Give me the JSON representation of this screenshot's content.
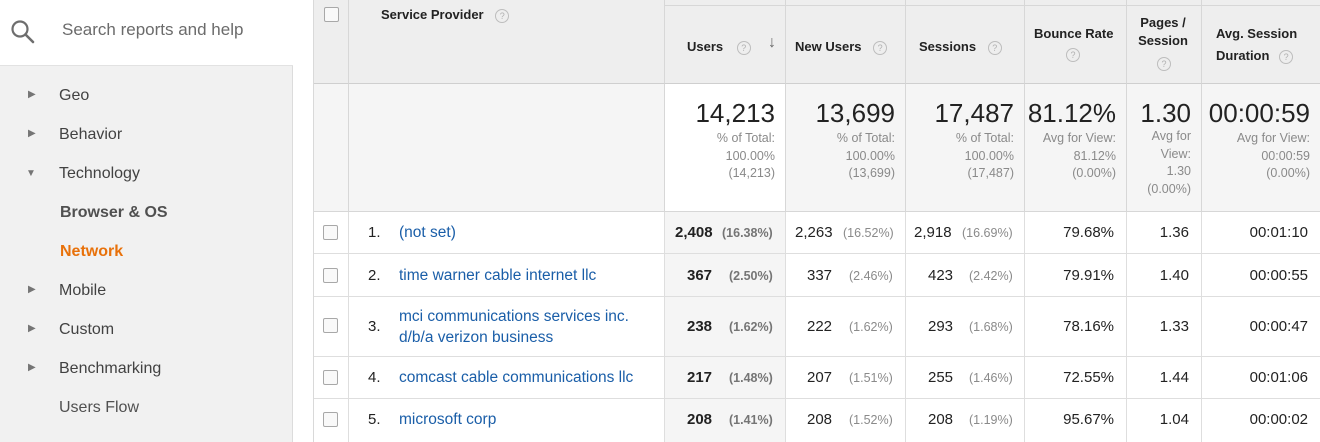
{
  "search": {
    "placeholder": "Search reports and help",
    "icon": "search-icon"
  },
  "sidebar": {
    "items": [
      {
        "label": "Geo",
        "type": "collapsed"
      },
      {
        "label": "Behavior",
        "type": "collapsed"
      },
      {
        "label": "Technology",
        "type": "expanded"
      },
      {
        "label": "Browser & OS",
        "type": "sub"
      },
      {
        "label": "Network",
        "type": "sub-active"
      },
      {
        "label": "Mobile",
        "type": "collapsed"
      },
      {
        "label": "Custom",
        "type": "collapsed"
      },
      {
        "label": "Benchmarking",
        "type": "collapsed"
      },
      {
        "label": "Users Flow",
        "type": "plain"
      }
    ],
    "active_color": "#e8710a"
  },
  "table": {
    "dimension_header": "Service Provider",
    "columns": {
      "users": "Users",
      "new_users": "New Users",
      "sessions": "Sessions",
      "bounce_rate": "Bounce Rate",
      "pages_session_1": "Pages /",
      "pages_session_2": "Session",
      "avg_duration_1": "Avg. Session",
      "avg_duration_2": "Duration"
    },
    "help_glyph": "?",
    "sort_glyph": "↓",
    "totals": {
      "users": {
        "value": "14,213",
        "l1": "% of Total:",
        "l2": "100.00%",
        "l3": "(14,213)"
      },
      "new_users": {
        "value": "13,699",
        "l1": "% of Total:",
        "l2": "100.00%",
        "l3": "(13,699)"
      },
      "sessions": {
        "value": "17,487",
        "l1": "% of Total:",
        "l2": "100.00%",
        "l3": "(17,487)"
      },
      "bounce_rate": {
        "value": "81.12%",
        "l1": "Avg for View:",
        "l2": "81.12%",
        "l3": "(0.00%)"
      },
      "pages_session": {
        "value": "1.30",
        "l1": "Avg for",
        "l2": "View:",
        "l3": "1.30",
        "l4": "(0.00%)"
      },
      "avg_duration": {
        "value": "00:00:59",
        "l1": "Avg for View:",
        "l2": "00:00:59",
        "l3": "(0.00%)"
      }
    },
    "rows": [
      {
        "num": "1.",
        "provider": "(not set)",
        "provider2": "",
        "users": "2,408",
        "users_pct": "(16.38%)",
        "new_users": "2,263",
        "new_users_pct": "(16.52%)",
        "sessions": "2,918",
        "sessions_pct": "(16.69%)",
        "bounce": "79.68%",
        "pages": "1.36",
        "duration": "00:01:10"
      },
      {
        "num": "2.",
        "provider": "time warner cable internet llc",
        "provider2": "",
        "users": "367",
        "users_pct": "(2.50%)",
        "new_users": "337",
        "new_users_pct": "(2.46%)",
        "sessions": "423",
        "sessions_pct": "(2.42%)",
        "bounce": "79.91%",
        "pages": "1.40",
        "duration": "00:00:55"
      },
      {
        "num": "3.",
        "provider": "mci communications services inc.",
        "provider2": "d/b/a verizon business",
        "users": "238",
        "users_pct": "(1.62%)",
        "new_users": "222",
        "new_users_pct": "(1.62%)",
        "sessions": "293",
        "sessions_pct": "(1.68%)",
        "bounce": "78.16%",
        "pages": "1.33",
        "duration": "00:00:47"
      },
      {
        "num": "4.",
        "provider": "comcast cable communications llc",
        "provider2": "",
        "users": "217",
        "users_pct": "(1.48%)",
        "new_users": "207",
        "new_users_pct": "(1.51%)",
        "sessions": "255",
        "sessions_pct": "(1.46%)",
        "bounce": "72.55%",
        "pages": "1.44",
        "duration": "00:01:06"
      },
      {
        "num": "5.",
        "provider": "microsoft corp",
        "provider2": "",
        "users": "208",
        "users_pct": "(1.41%)",
        "new_users": "208",
        "new_users_pct": "(1.52%)",
        "sessions": "208",
        "sessions_pct": "(1.19%)",
        "bounce": "95.67%",
        "pages": "1.04",
        "duration": "00:00:02"
      }
    ]
  }
}
